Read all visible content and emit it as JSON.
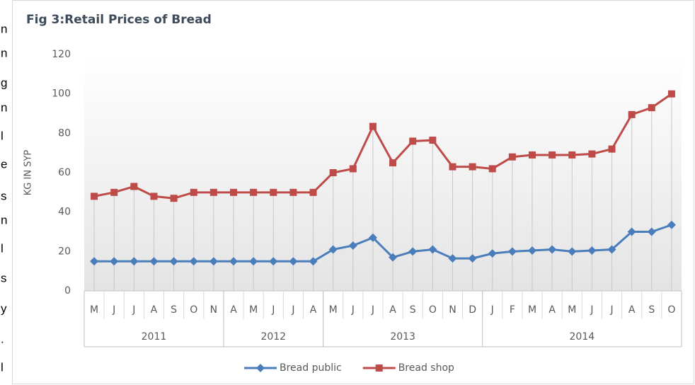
{
  "cropped_text": [
    "n",
    "n",
    "g",
    "n",
    "l",
    "e",
    "s",
    "n",
    "l",
    "s",
    "y",
    ".",
    "l"
  ],
  "chart_data": {
    "type": "line",
    "title": "Fig 3:Retail Prices of Bread",
    "y_label": "KG IN SYP",
    "groups": [
      {
        "name": "2011",
        "categories": [
          "M",
          "J",
          "J",
          "A",
          "S",
          "O",
          "N"
        ]
      },
      {
        "name": "2012",
        "categories": [
          "A",
          "M",
          "J",
          "J",
          "A"
        ]
      },
      {
        "name": "2013",
        "categories": [
          "M",
          "J",
          "J",
          "A",
          "S",
          "O",
          "N",
          "D"
        ]
      },
      {
        "name": "2014",
        "categories": [
          "J",
          "F",
          "M",
          "A",
          "M",
          "J",
          "J",
          "A",
          "S",
          "O"
        ]
      }
    ],
    "series": [
      {
        "name": "Bread public",
        "color": "#4a7ebb",
        "marker": "diamond",
        "values": [
          15,
          15,
          15,
          15,
          15,
          15,
          15,
          15,
          15,
          15,
          15,
          15,
          21,
          23,
          27,
          17,
          20,
          21,
          16.5,
          16.5,
          19,
          20,
          20.5,
          21,
          20,
          20.5,
          21,
          30,
          30,
          33.5
        ]
      },
      {
        "name": "Bread shop",
        "color": "#be4b48",
        "marker": "square",
        "values": [
          48,
          50,
          53,
          48,
          47,
          50,
          50,
          50,
          50,
          50,
          50,
          50,
          60,
          62,
          83.5,
          65,
          76,
          76.5,
          63,
          63,
          62,
          68,
          69,
          69,
          69,
          69.5,
          72,
          89.5,
          93,
          100
        ]
      }
    ],
    "ylim": [
      0,
      120
    ],
    "yticks": [
      0,
      20,
      40,
      60,
      80,
      100,
      120
    ],
    "drop_lines": true,
    "legend": "bottom"
  }
}
